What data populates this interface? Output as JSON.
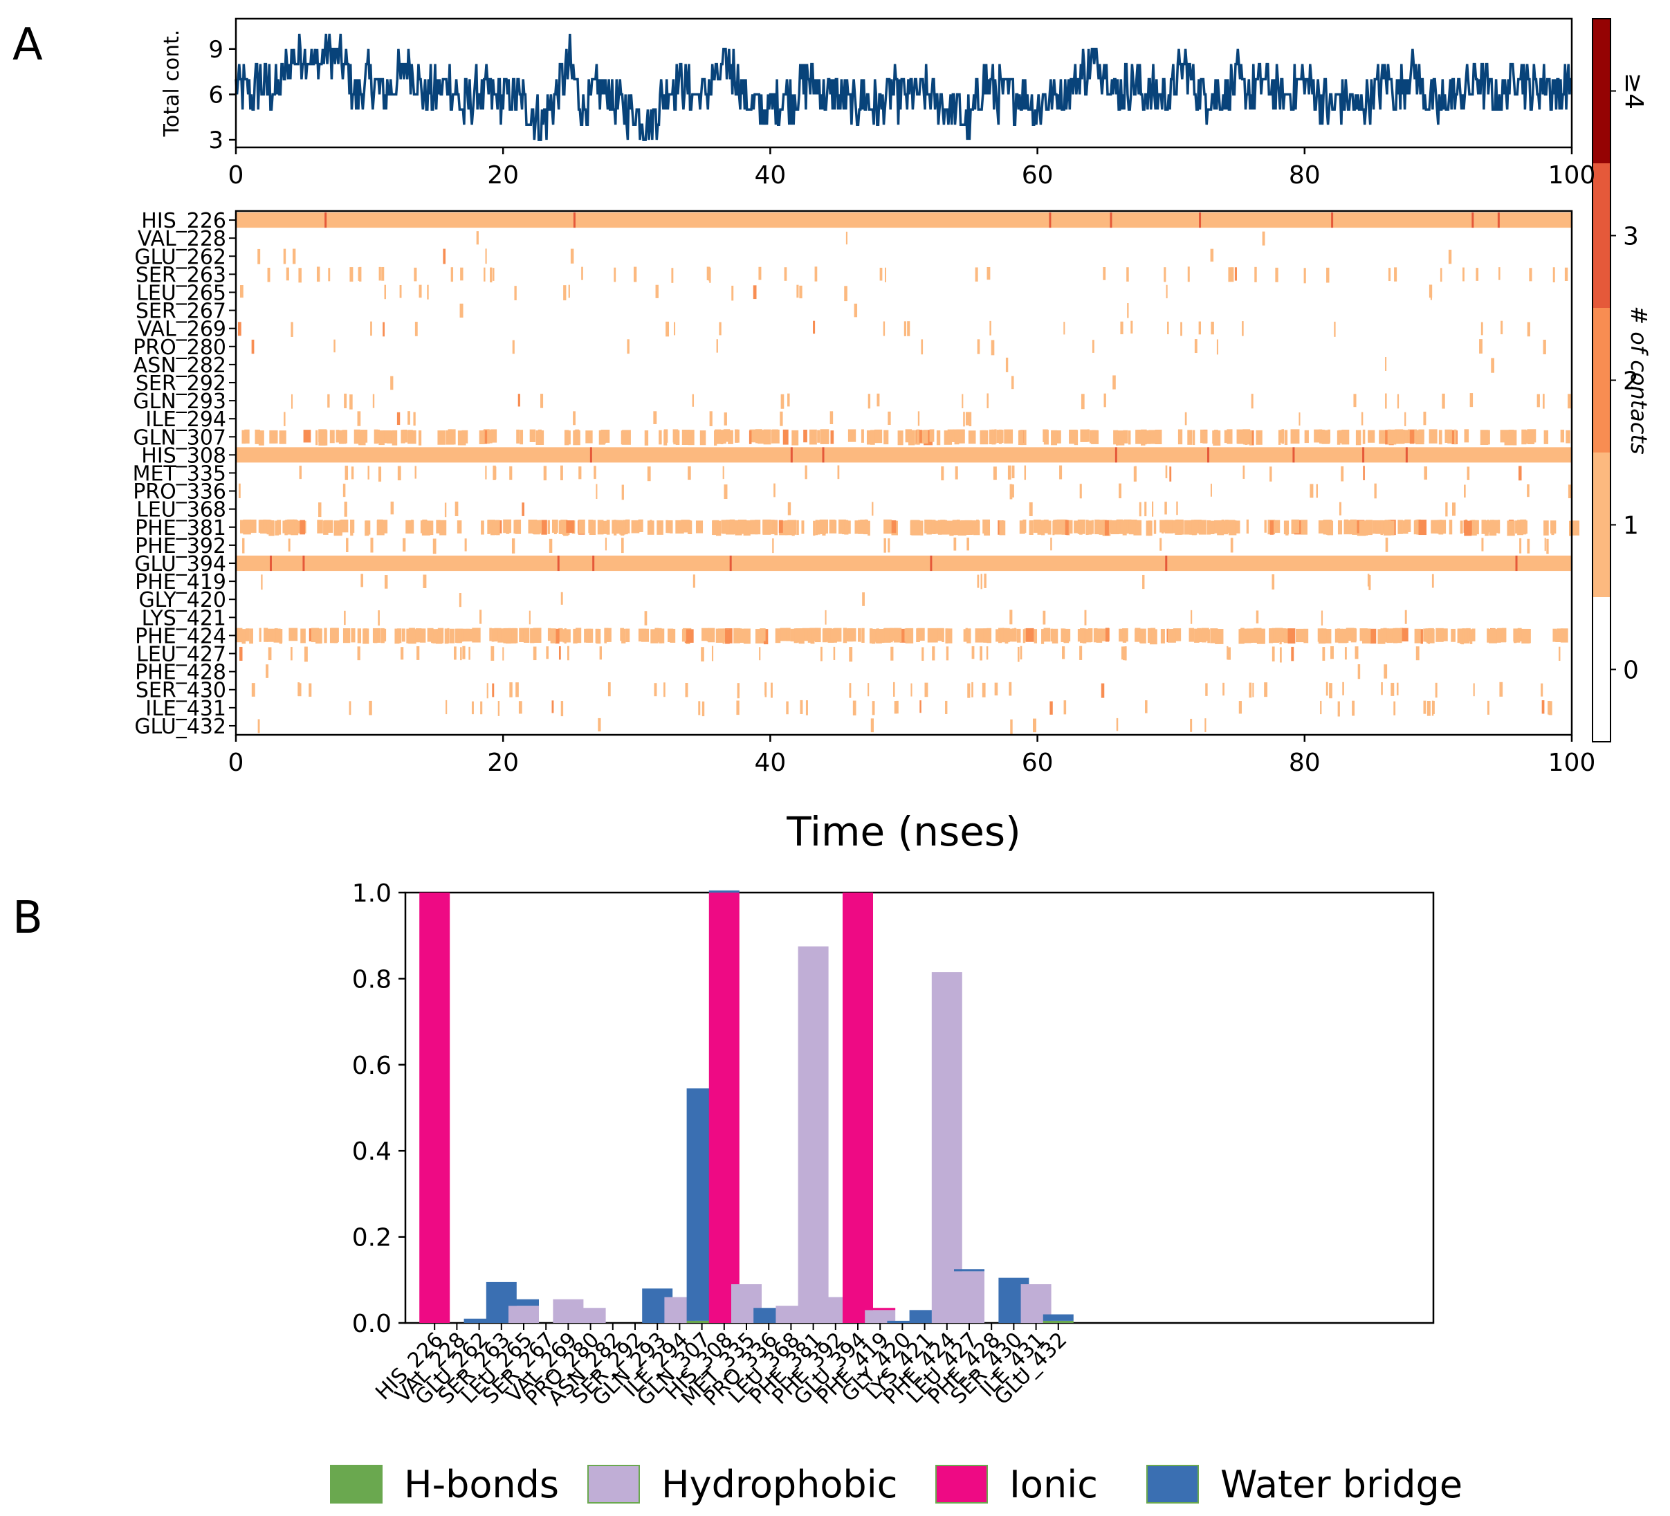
{
  "chart_data": [
    {
      "panel": "A",
      "type": "line",
      "subplot": "top",
      "ylabel": "Total cont.",
      "xlim": [
        0,
        100
      ],
      "ylim": [
        2.5,
        11
      ],
      "xticks": [
        "0",
        "20",
        "40",
        "60",
        "80",
        "100"
      ],
      "yticks": [
        "3",
        "6",
        "9"
      ],
      "series": [
        {
          "name": "Total contacts",
          "color": "#08437a",
          "x": [
            0,
            1,
            2,
            3,
            4,
            5,
            6,
            7,
            8,
            9,
            10,
            11,
            12,
            13,
            14,
            15,
            16,
            17,
            18,
            19,
            20,
            21,
            22,
            23,
            24,
            25,
            26,
            27,
            28,
            29,
            30,
            31,
            32,
            33,
            34,
            35,
            36,
            37,
            38,
            39,
            40,
            41,
            42,
            43,
            44,
            45,
            46,
            47,
            48,
            49,
            50,
            51,
            52,
            53,
            54,
            55,
            56,
            57,
            58,
            59,
            60,
            61,
            62,
            63,
            64,
            65,
            66,
            67,
            68,
            69,
            70,
            71,
            72,
            73,
            74,
            75,
            76,
            77,
            78,
            79,
            80,
            81,
            82,
            83,
            84,
            85,
            86,
            87,
            88,
            89,
            90,
            91,
            92,
            93,
            94,
            95,
            96,
            97,
            98,
            99,
            100
          ],
          "y": [
            7,
            6,
            7,
            6,
            8,
            9,
            8,
            9,
            8,
            6,
            7,
            6,
            7,
            8,
            6,
            6,
            7,
            5,
            6,
            6,
            6,
            6,
            5,
            4,
            6,
            8,
            5,
            6,
            6,
            5,
            5,
            4,
            6,
            7,
            6,
            6,
            7,
            8,
            6,
            5,
            5,
            6,
            6,
            7,
            6,
            6,
            5,
            6,
            5,
            6,
            6,
            6,
            6,
            5,
            5,
            4,
            7,
            6,
            6,
            6,
            5,
            6,
            6,
            7,
            8,
            8,
            6,
            7,
            6,
            6,
            6,
            8,
            6,
            6,
            6,
            7,
            6,
            7,
            6,
            6,
            7,
            6,
            5,
            6,
            5,
            6,
            7,
            6,
            8,
            6,
            5,
            6,
            6,
            7,
            6,
            6,
            8,
            6,
            7,
            6,
            7
          ]
        }
      ]
    },
    {
      "panel": "A",
      "type": "heatmap",
      "subplot": "bottom",
      "xlabel": "Time (nses)",
      "xlim": [
        0,
        100
      ],
      "xticks": [
        "0",
        "20",
        "40",
        "60",
        "80",
        "100"
      ],
      "rows": [
        "HIS_226",
        "VAL_228",
        "GLU_262",
        "SER_263",
        "LEU_265",
        "SER_267",
        "VAL_269",
        "PRO_280",
        "ASN_282",
        "SER_292",
        "GLN_293",
        "ILE_294",
        "GLN_307",
        "HIS_308",
        "MET_335",
        "PRO_336",
        "LEU_368",
        "PHE_381",
        "PHE_392",
        "GLU_394",
        "PHE_419",
        "GLY_420",
        "LYS_421",
        "PHE_424",
        "LEU_427",
        "PHE_428",
        "SER_430",
        "ILE_431",
        "GLU_432"
      ],
      "row_density": [
        1.0,
        0.003,
        0.02,
        0.12,
        0.04,
        0.003,
        0.06,
        0.03,
        0.003,
        0.003,
        0.06,
        0.05,
        0.55,
        1.0,
        0.09,
        0.04,
        0.04,
        0.87,
        0.06,
        1.0,
        0.03,
        0.005,
        0.03,
        0.82,
        0.12,
        0.003,
        0.1,
        0.09,
        0.02
      ],
      "colorbar": {
        "label": "# of contacts",
        "ticks": [
          "0",
          "1",
          "2",
          "3",
          "≥4"
        ],
        "colors": [
          "#ffffff",
          "#fcb97f",
          "#f88d52",
          "#e5593a",
          "#950303"
        ]
      }
    },
    {
      "panel": "B",
      "type": "bar",
      "stacked": true,
      "ylim": [
        0,
        1.0
      ],
      "yticks": [
        "0.0",
        "0.2",
        "0.4",
        "0.6",
        "0.8",
        "1.0"
      ],
      "categories": [
        "HIS_226",
        "VAL_228",
        "GLU_262",
        "SER_263",
        "LEU_265",
        "SER_267",
        "VAL_269",
        "PRO_280",
        "ASN_282",
        "SER_292",
        "GLN_293",
        "ILE_294",
        "GLN_307",
        "HIS_308",
        "MET_335",
        "PRO_336",
        "LEU_368",
        "PHE_381",
        "PHE_392",
        "GLU_394",
        "PHE_419",
        "GLY_420",
        "LYS_421",
        "PHE_424",
        "LEU_427",
        "PHE_428",
        "SER_430",
        "ILE_431",
        "GLU_432"
      ],
      "series": [
        {
          "name": "H-bonds",
          "color": "#6aa84f",
          "values": [
            0,
            0,
            0,
            0,
            0,
            0,
            0,
            0,
            0,
            0,
            0,
            0,
            0.005,
            0,
            0,
            0,
            0,
            0,
            0,
            0,
            0,
            0,
            0,
            0,
            0,
            0,
            0,
            0,
            0.005
          ]
        },
        {
          "name": "Hydrophobic",
          "color": "#c0aed6",
          "values": [
            0,
            0,
            0,
            0,
            0.04,
            0,
            0.055,
            0.035,
            0,
            0,
            0,
            0.06,
            0,
            0,
            0.09,
            0,
            0.04,
            0.875,
            0.06,
            0,
            0.03,
            0,
            0,
            0.815,
            0.12,
            0,
            0,
            0.09,
            0
          ]
        },
        {
          "name": "Ionic",
          "color": "#ee0a84",
          "values": [
            1.0,
            0,
            0,
            0,
            0,
            0,
            0,
            0,
            0,
            0,
            0,
            0,
            0,
            1.0,
            0,
            0,
            0,
            0,
            0,
            1.0,
            0.005,
            0,
            0,
            0,
            0,
            0,
            0,
            0,
            0
          ]
        },
        {
          "name": "Water bridge",
          "color": "#3a6fb2",
          "values": [
            0,
            0,
            0.01,
            0.095,
            0.015,
            0,
            0,
            0,
            0,
            0,
            0.08,
            0,
            0.54,
            0.005,
            0,
            0.035,
            0,
            0,
            0,
            0,
            0,
            0.005,
            0.03,
            0,
            0.005,
            0,
            0.105,
            0,
            0.015
          ]
        }
      ],
      "tick_labels": [
        "HIS_226",
        "VAL_228",
        "GLU_262",
        "SER_263",
        "LEU_265",
        "SER_267",
        "VAL_269",
        "PRO_280",
        "ASN_282",
        "SER_292",
        "GLN_293",
        "ILE_294",
        "GLN_307",
        "HIS_308",
        "MET_335",
        "PRO_336",
        "LEU_368",
        "PHE_381",
        "PHE_392",
        "GLU_394",
        "PHE_419",
        "GLY_420",
        "LYS_421",
        "PHE_424",
        "LEU_427",
        "PHE_428",
        "SER_430",
        "ILE_431",
        "GLU_432"
      ],
      "legend": [
        "H-bonds",
        "Hydrophobic",
        "Ionic",
        "Water bridge"
      ],
      "legend_position": "bottom"
    }
  ],
  "panels": {
    "a": "A",
    "b": "B"
  }
}
